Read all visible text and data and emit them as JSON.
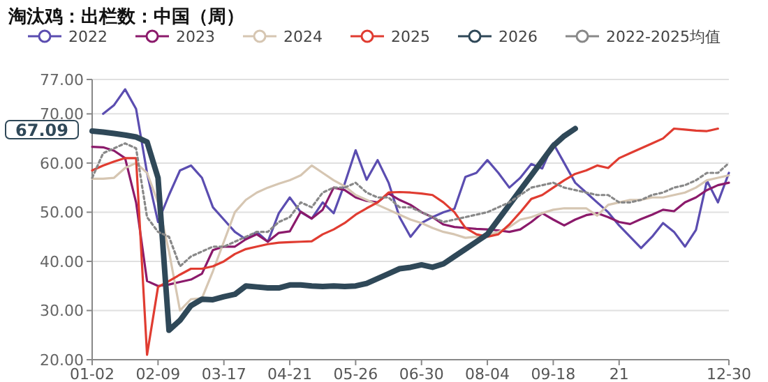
{
  "chart_data": {
    "type": "line",
    "title": "淘汰鸡：出栏数：中国（周）",
    "categories": [
      "01-02",
      null,
      null,
      null,
      null,
      null,
      "02-09",
      null,
      null,
      null,
      null,
      null,
      "03-17",
      null,
      null,
      null,
      null,
      null,
      "04-21",
      null,
      null,
      null,
      null,
      null,
      "05-26",
      null,
      null,
      null,
      null,
      null,
      "06-30",
      null,
      null,
      null,
      null,
      null,
      "08-04",
      null,
      null,
      null,
      null,
      null,
      "09-18",
      null,
      null,
      null,
      null,
      null,
      "21",
      null,
      null,
      null,
      null,
      null,
      null,
      null,
      null,
      null,
      "12-30"
    ],
    "series": [
      {
        "name": "2022",
        "color": "#5b4db0",
        "values": [
          null,
          70,
          71.8,
          75,
          71,
          58,
          48,
          53.5,
          58.5,
          59.5,
          57,
          51,
          48.5,
          46,
          44.5,
          46,
          44,
          49.8,
          53,
          50,
          48.7,
          52,
          49.8,
          55.8,
          62.6,
          56.6,
          60.6,
          56,
          49,
          45,
          47.8,
          49,
          50,
          50.7,
          57.2,
          58,
          60.6,
          58,
          55,
          57,
          59.8,
          58.9,
          64,
          60,
          56,
          54,
          52,
          50,
          47.3,
          45,
          42.7,
          45,
          47.8,
          46,
          43,
          46.4,
          56.4,
          52,
          58
        ]
      },
      {
        "name": "2023",
        "color": "#8b1a6b",
        "values": [
          63.3,
          63.2,
          62.5,
          61,
          52,
          36,
          35,
          35.3,
          35.8,
          36.3,
          37.5,
          42.3,
          43,
          43,
          44.5,
          45.5,
          44,
          45.8,
          46.1,
          50.1,
          48.7,
          50.5,
          55,
          54.5,
          53,
          52.3,
          52,
          53.8,
          52.5,
          51.5,
          50,
          49,
          47.5,
          47,
          46.8,
          46.6,
          46.5,
          46.3,
          46,
          46.5,
          48,
          49.8,
          48.5,
          47.3,
          48.5,
          49.4,
          49.8,
          49,
          48,
          47.6,
          48.6,
          49.5,
          50.5,
          50.2,
          52,
          53,
          54.5,
          55.5,
          56
        ]
      },
      {
        "name": "2024",
        "color": "#d6c6b2",
        "values": [
          56.8,
          56.8,
          57,
          59,
          60,
          58,
          52,
          42,
          30,
          32.3,
          32.5,
          38,
          44,
          50,
          52.5,
          54,
          55,
          55.8,
          56.5,
          57.5,
          59.5,
          58,
          56.5,
          55.3,
          53.5,
          52.5,
          51.5,
          50.5,
          49.5,
          48.5,
          47.8,
          46.8,
          46,
          45.5,
          44.8,
          45,
          45.3,
          46,
          47,
          48.5,
          49,
          49.8,
          50.5,
          50.8,
          50.8,
          50.8,
          49.3,
          51.5,
          52,
          52.5,
          52.5,
          53,
          53,
          53.5,
          54,
          55,
          56.5,
          57,
          57.5
        ]
      },
      {
        "name": "2025",
        "color": "#e03c31",
        "values": [
          58.5,
          59.5,
          60.3,
          61,
          61,
          21,
          34.8,
          36,
          37.3,
          38.5,
          38.5,
          39,
          40,
          41.5,
          42.5,
          43,
          43.5,
          43.8,
          43.9,
          44,
          44.1,
          45.5,
          46.5,
          47.8,
          49.5,
          50.8,
          52,
          54,
          54.1,
          54,
          53.8,
          53.5,
          52,
          50,
          46.8,
          45.5,
          45,
          45.5,
          47.5,
          50,
          52.7,
          53.5,
          55,
          56.5,
          57.8,
          58.5,
          59.5,
          59,
          61,
          62,
          63,
          64,
          65,
          67,
          66.8,
          66.6,
          66.5,
          67,
          null
        ]
      },
      {
        "name": "2026",
        "color": "#2f4858",
        "values": [
          66.5,
          66.3,
          66,
          65.7,
          65.3,
          64.3,
          57,
          26,
          28,
          31,
          32.3,
          32.2,
          32.8,
          33.3,
          35,
          34.8,
          34.6,
          34.6,
          35.2,
          35.2,
          35,
          34.9,
          35,
          34.9,
          35,
          35.5,
          36.5,
          37.5,
          38.5,
          38.8,
          39.3,
          38.8,
          39.5,
          41,
          42.5,
          44,
          45.5,
          48.5,
          51.5,
          54.5,
          57.5,
          60.5,
          63.5,
          65.5,
          67,
          null,
          null,
          null,
          null,
          null,
          null,
          null,
          null,
          null,
          null,
          null,
          null,
          null,
          null
        ]
      },
      {
        "name": "2022-2025均值",
        "color": "#888888",
        "line_style": "dotted",
        "values": [
          57,
          62,
          63,
          64,
          63,
          49,
          46,
          45,
          39,
          41,
          42,
          43,
          43,
          44,
          45,
          46,
          46,
          48,
          49,
          52,
          51,
          54,
          55,
          55,
          56,
          54,
          53,
          53,
          51,
          51,
          50,
          49,
          48,
          48.5,
          49,
          49.5,
          50,
          51,
          52,
          53.5,
          55,
          55.5,
          56,
          55,
          54.5,
          54,
          53.5,
          53.5,
          52,
          52,
          52.5,
          53.5,
          54,
          55,
          55.5,
          56.5,
          58,
          58,
          60
        ]
      }
    ],
    "ylim": [
      20,
      77
    ],
    "yticks": [
      {
        "value": 20,
        "label": "20.00"
      },
      {
        "value": 30,
        "label": "30.00"
      },
      {
        "value": 40,
        "label": "40.00"
      },
      {
        "value": 50,
        "label": "50.00"
      },
      {
        "value": 60,
        "label": "60.00"
      },
      {
        "value": 70,
        "label": "70.00"
      },
      {
        "value": 77,
        "label": "77.00"
      }
    ],
    "annotations": [
      "67.09"
    ],
    "grid": "y",
    "legend": "top"
  }
}
